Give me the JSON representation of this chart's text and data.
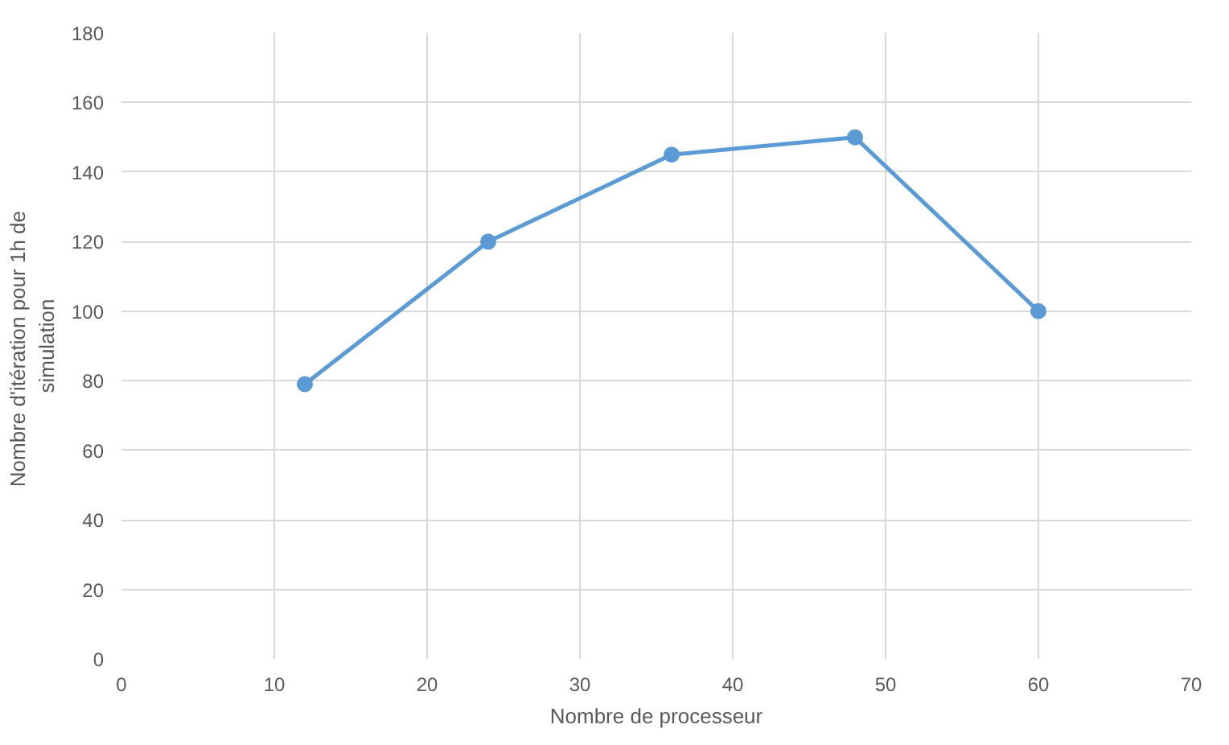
{
  "chart_data": {
    "type": "line",
    "xlabel": "Nombre de processeur",
    "ylabel": "Nombre  d'itération pour 1h de\nsimulation",
    "x": [
      12,
      24,
      36,
      48,
      60
    ],
    "series": [
      {
        "color": "#5b9bd5",
        "values": [
          79,
          120,
          145,
          150,
          100
        ]
      }
    ],
    "xlim": [
      0,
      70
    ],
    "xticks": [
      0,
      10,
      20,
      30,
      40,
      50,
      60,
      70
    ],
    "ylim": [
      0,
      180
    ],
    "yticks": [
      0,
      20,
      40,
      60,
      80,
      100,
      120,
      140,
      160,
      180
    ],
    "grid": true,
    "marker": "circle",
    "line_style": "solid"
  }
}
